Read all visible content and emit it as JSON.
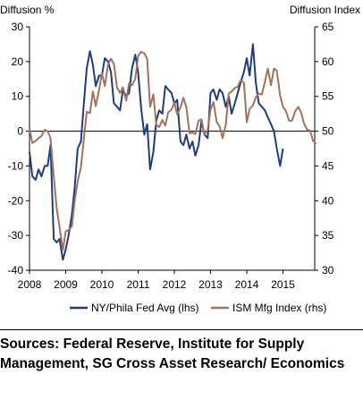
{
  "chart_data": {
    "type": "line",
    "left_axis_title": "Diffusion %",
    "right_axis_title": "Diffusion Index",
    "x_range": [
      2008.0,
      2016.0
    ],
    "x_ticks": [
      "2008",
      "2009",
      "2010",
      "2011",
      "2012",
      "2013",
      "2014",
      "2015"
    ],
    "y_left": {
      "range": [
        -40,
        30
      ],
      "ticks": [
        "30",
        "20",
        "10",
        "0",
        "-10",
        "-20",
        "-30",
        "-40"
      ]
    },
    "y_right": {
      "range": [
        30,
        65
      ],
      "ticks": [
        "65",
        "60",
        "55",
        "50",
        "45",
        "40",
        "35",
        "30"
      ]
    },
    "grid": false,
    "legend_position": "bottom",
    "series": [
      {
        "name": "NY/Phila Fed Avg (lhs)",
        "axis": "left",
        "color": "#1f3d7a",
        "points": [
          [
            2008.0,
            -6
          ],
          [
            2008.08,
            -13
          ],
          [
            2008.17,
            -14
          ],
          [
            2008.25,
            -11
          ],
          [
            2008.33,
            -13
          ],
          [
            2008.42,
            -10
          ],
          [
            2008.5,
            -10
          ],
          [
            2008.58,
            -4
          ],
          [
            2008.67,
            -31
          ],
          [
            2008.75,
            -32
          ],
          [
            2008.83,
            -31
          ],
          [
            2008.92,
            -37
          ],
          [
            2009.0,
            -34
          ],
          [
            2009.08,
            -30
          ],
          [
            2009.17,
            -24
          ],
          [
            2009.25,
            -16
          ],
          [
            2009.33,
            -5
          ],
          [
            2009.42,
            -3
          ],
          [
            2009.5,
            8
          ],
          [
            2009.58,
            18
          ],
          [
            2009.67,
            23
          ],
          [
            2009.75,
            19
          ],
          [
            2009.83,
            13
          ],
          [
            2009.92,
            16
          ],
          [
            2010.0,
            16
          ],
          [
            2010.08,
            21
          ],
          [
            2010.17,
            20
          ],
          [
            2010.25,
            17
          ],
          [
            2010.33,
            8
          ],
          [
            2010.42,
            7
          ],
          [
            2010.5,
            6
          ],
          [
            2010.58,
            12
          ],
          [
            2010.67,
            10
          ],
          [
            2010.75,
            11
          ],
          [
            2010.83,
            18
          ],
          [
            2010.92,
            22
          ],
          [
            2011.0,
            17
          ],
          [
            2011.08,
            7
          ],
          [
            2011.17,
            -1
          ],
          [
            2011.25,
            2
          ],
          [
            2011.33,
            -11
          ],
          [
            2011.42,
            -6
          ],
          [
            2011.5,
            3
          ],
          [
            2011.58,
            6
          ],
          [
            2011.67,
            5
          ],
          [
            2011.75,
            13
          ],
          [
            2011.83,
            12
          ],
          [
            2011.92,
            11
          ],
          [
            2012.0,
            8
          ],
          [
            2012.08,
            9
          ],
          [
            2012.17,
            -3
          ],
          [
            2012.25,
            -4
          ],
          [
            2012.33,
            -1
          ],
          [
            2012.42,
            -5
          ],
          [
            2012.5,
            -3
          ],
          [
            2012.58,
            -7
          ],
          [
            2012.67,
            -4
          ],
          [
            2012.75,
            3
          ],
          [
            2012.83,
            -1
          ],
          [
            2012.92,
            -2
          ],
          [
            2013.0,
            11
          ],
          [
            2013.08,
            12
          ],
          [
            2013.17,
            9
          ],
          [
            2013.25,
            12
          ],
          [
            2013.33,
            11
          ],
          [
            2013.42,
            7
          ],
          [
            2013.5,
            10
          ],
          [
            2013.58,
            5
          ],
          [
            2013.67,
            8
          ],
          [
            2013.75,
            11
          ],
          [
            2013.83,
            14
          ],
          [
            2013.92,
            17
          ],
          [
            2014.0,
            21
          ],
          [
            2014.08,
            16
          ],
          [
            2014.17,
            25
          ],
          [
            2014.25,
            14
          ],
          [
            2014.33,
            8
          ],
          [
            2014.42,
            7
          ],
          [
            2014.5,
            6
          ],
          [
            2014.58,
            4
          ],
          [
            2014.67,
            2
          ],
          [
            2014.75,
            0
          ],
          [
            2014.83,
            -5
          ],
          [
            2014.92,
            -10
          ],
          [
            2015.0,
            -5
          ]
        ]
      },
      {
        "name": "ISM Mfg Index (rhs)",
        "axis": "right",
        "color": "#a0735a",
        "points": [
          [
            2008.0,
            50.3
          ],
          [
            2008.08,
            48.3
          ],
          [
            2008.17,
            48.6
          ],
          [
            2008.25,
            49.0
          ],
          [
            2008.33,
            49.3
          ],
          [
            2008.42,
            50.2
          ],
          [
            2008.5,
            50.0
          ],
          [
            2008.58,
            49.0
          ],
          [
            2008.67,
            43.5
          ],
          [
            2008.75,
            38.9
          ],
          [
            2008.83,
            36.2
          ],
          [
            2008.92,
            32.9
          ],
          [
            2009.0,
            35.6
          ],
          [
            2009.08,
            35.8
          ],
          [
            2009.17,
            36.3
          ],
          [
            2009.25,
            40.1
          ],
          [
            2009.33,
            42.8
          ],
          [
            2009.42,
            44.8
          ],
          [
            2009.5,
            48.9
          ],
          [
            2009.58,
            52.8
          ],
          [
            2009.67,
            52.6
          ],
          [
            2009.75,
            55.7
          ],
          [
            2009.83,
            53.6
          ],
          [
            2009.92,
            55.9
          ],
          [
            2010.0,
            58.4
          ],
          [
            2010.08,
            56.5
          ],
          [
            2010.17,
            59.6
          ],
          [
            2010.25,
            60.4
          ],
          [
            2010.33,
            59.7
          ],
          [
            2010.42,
            56.2
          ],
          [
            2010.5,
            55.5
          ],
          [
            2010.58,
            56.3
          ],
          [
            2010.67,
            54.4
          ],
          [
            2010.75,
            56.9
          ],
          [
            2010.83,
            56.6
          ],
          [
            2010.92,
            57.5
          ],
          [
            2011.0,
            60.8
          ],
          [
            2011.08,
            61.4
          ],
          [
            2011.17,
            61.2
          ],
          [
            2011.25,
            60.4
          ],
          [
            2011.33,
            53.5
          ],
          [
            2011.42,
            55.3
          ],
          [
            2011.5,
            50.9
          ],
          [
            2011.58,
            50.6
          ],
          [
            2011.67,
            51.6
          ],
          [
            2011.75,
            50.8
          ],
          [
            2011.83,
            52.7
          ],
          [
            2011.92,
            53.1
          ],
          [
            2012.0,
            54.1
          ],
          [
            2012.08,
            52.4
          ],
          [
            2012.17,
            53.4
          ],
          [
            2012.25,
            54.8
          ],
          [
            2012.33,
            53.5
          ],
          [
            2012.42,
            49.7
          ],
          [
            2012.5,
            49.8
          ],
          [
            2012.58,
            49.6
          ],
          [
            2012.67,
            51.5
          ],
          [
            2012.75,
            51.7
          ],
          [
            2012.83,
            49.5
          ],
          [
            2012.92,
            50.2
          ],
          [
            2013.0,
            53.1
          ],
          [
            2013.08,
            54.2
          ],
          [
            2013.17,
            51.3
          ],
          [
            2013.25,
            50.7
          ],
          [
            2013.33,
            49.0
          ],
          [
            2013.42,
            50.9
          ],
          [
            2013.5,
            55.4
          ],
          [
            2013.58,
            55.7
          ],
          [
            2013.67,
            56.2
          ],
          [
            2013.75,
            56.4
          ],
          [
            2013.83,
            57.3
          ],
          [
            2013.92,
            57.0
          ],
          [
            2014.0,
            51.3
          ],
          [
            2014.08,
            53.2
          ],
          [
            2014.17,
            53.7
          ],
          [
            2014.25,
            54.9
          ],
          [
            2014.33,
            55.4
          ],
          [
            2014.42,
            55.3
          ],
          [
            2014.5,
            57.1
          ],
          [
            2014.58,
            59.0
          ],
          [
            2014.67,
            56.6
          ],
          [
            2014.75,
            59.0
          ],
          [
            2014.83,
            58.7
          ],
          [
            2014.92,
            55.1
          ],
          [
            2015.0,
            53.5
          ],
          [
            2015.08,
            52.9
          ],
          [
            2015.17,
            51.5
          ],
          [
            2015.25,
            51.5
          ],
          [
            2015.33,
            52.8
          ],
          [
            2015.42,
            53.5
          ],
          [
            2015.5,
            52.7
          ],
          [
            2015.58,
            51.1
          ],
          [
            2015.67,
            50.2
          ],
          [
            2015.75,
            50.1
          ],
          [
            2015.83,
            48.6
          ],
          [
            2015.92,
            48.2
          ]
        ]
      }
    ]
  },
  "source_note": "Sources: Federal Reserve, Institute for Supply Management, SG Cross Asset Research/ Economics"
}
